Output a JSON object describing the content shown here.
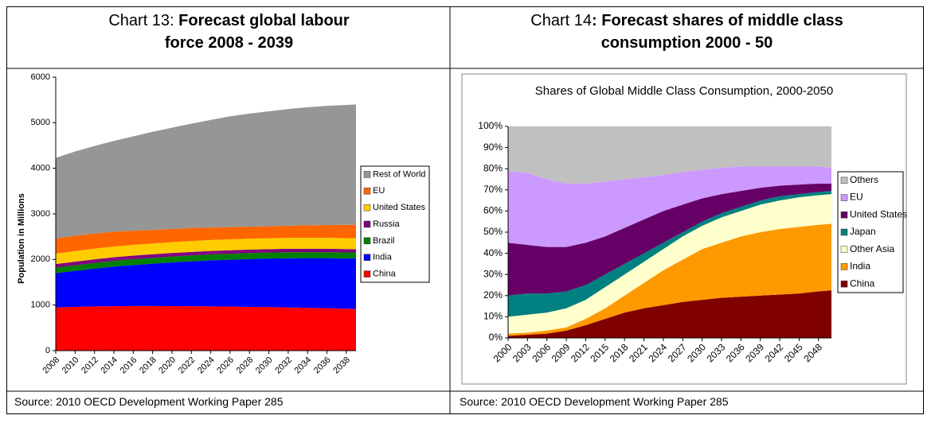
{
  "chart_data": [
    {
      "type": "area",
      "stacked": true,
      "caption_number": "Chart 13:",
      "caption": "Forecast global labour force 2008 - 2039",
      "y_label": "Population in Millions",
      "source": "Source: 2010 OECD Development Working Paper 285",
      "x": [
        2008,
        2010,
        2012,
        2014,
        2016,
        2018,
        2020,
        2022,
        2024,
        2026,
        2028,
        2030,
        2032,
        2034,
        2036,
        2038,
        2039
      ],
      "xlim": [
        2008,
        2039
      ],
      "xticks": [
        2008,
        2010,
        2012,
        2014,
        2016,
        2018,
        2020,
        2022,
        2024,
        2026,
        2028,
        2030,
        2032,
        2034,
        2036,
        2038
      ],
      "ylim": [
        0,
        6000
      ],
      "yticks": [
        0,
        1000,
        2000,
        3000,
        4000,
        5000,
        6000
      ],
      "series": [
        {
          "name": "China",
          "color": "#ff0000",
          "values": [
            950,
            960,
            970,
            975,
            978,
            978,
            976,
            974,
            970,
            965,
            960,
            955,
            948,
            940,
            930,
            920,
            915
          ]
        },
        {
          "name": "India",
          "color": "#0000ff",
          "values": [
            750,
            790,
            830,
            870,
            900,
            930,
            960,
            985,
            1010,
            1030,
            1050,
            1065,
            1080,
            1090,
            1100,
            1105,
            1108
          ]
        },
        {
          "name": "Brazil",
          "color": "#008000",
          "values": [
            120,
            122,
            124,
            126,
            127,
            128,
            129,
            130,
            130,
            131,
            131,
            131,
            131,
            131,
            130,
            130,
            130
          ]
        },
        {
          "name": "Russia",
          "color": "#800080",
          "values": [
            80,
            80,
            80,
            79,
            79,
            78,
            78,
            77,
            77,
            76,
            76,
            75,
            75,
            74,
            74,
            73,
            73
          ]
        },
        {
          "name": "United States",
          "color": "#ffcc00",
          "values": [
            230,
            232,
            234,
            235,
            236,
            237,
            238,
            239,
            240,
            240,
            240,
            240,
            240,
            240,
            240,
            240,
            240
          ]
        },
        {
          "name": "EU",
          "color": "#ff6600",
          "values": [
            330,
            336,
            332,
            325,
            310,
            299,
            289,
            285,
            273,
            268,
            263,
            264,
            266,
            275,
            281,
            292,
            294
          ]
        },
        {
          "name": "Rest of World",
          "color": "#969696",
          "values": [
            1770,
            1850,
            1920,
            1990,
            2070,
            2150,
            2220,
            2290,
            2360,
            2430,
            2480,
            2520,
            2560,
            2590,
            2615,
            2630,
            2640
          ]
        }
      ]
    },
    {
      "type": "area",
      "stacked": true,
      "caption_number": "Chart 14",
      "caption": ": Forecast shares of middle class consumption 2000 - 50",
      "title": "Shares of Global Middle Class Consumption, 2000-2050",
      "source": "Source: 2010 OECD Development Working Paper 285",
      "x": [
        2000,
        2003,
        2006,
        2009,
        2012,
        2015,
        2018,
        2021,
        2024,
        2027,
        2030,
        2033,
        2036,
        2039,
        2042,
        2045,
        2048,
        2050
      ],
      "xlim": [
        2000,
        2050
      ],
      "xticks": [
        2000,
        2003,
        2006,
        2009,
        2012,
        2015,
        2018,
        2021,
        2024,
        2027,
        2030,
        2033,
        2036,
        2039,
        2042,
        2045,
        2048
      ],
      "ylim": [
        0,
        100
      ],
      "yticks": [
        {
          "value": 0,
          "label": "0%"
        },
        {
          "value": 10,
          "label": "10%"
        },
        {
          "value": 20,
          "label": "20%"
        },
        {
          "value": 30,
          "label": "30%"
        },
        {
          "value": 40,
          "label": "40%"
        },
        {
          "value": 50,
          "label": "50%"
        },
        {
          "value": 60,
          "label": "60%"
        },
        {
          "value": 70,
          "label": "70%"
        },
        {
          "value": 80,
          "label": "80%"
        },
        {
          "value": 90,
          "label": "90%"
        },
        {
          "value": 100,
          "label": "100%"
        }
      ],
      "series": [
        {
          "name": "China",
          "color": "#800000",
          "values": [
            1,
            1.5,
            2,
            3.5,
            6,
            9,
            12,
            14,
            15.5,
            17,
            18,
            19,
            19.5,
            20,
            20.5,
            21,
            22,
            22.5
          ]
        },
        {
          "name": "India",
          "color": "#ff9900",
          "values": [
            1,
            1,
            1.5,
            1.5,
            3,
            5,
            8,
            12,
            16.5,
            20,
            24,
            26,
            28.5,
            30,
            31,
            31.5,
            31.5,
            31.5
          ]
        },
        {
          "name": "Other Asia",
          "color": "#ffffcc",
          "values": [
            8,
            8.5,
            8.5,
            9,
            9,
            10,
            10,
            10,
            10,
            11,
            11,
            12,
            12,
            13,
            13.5,
            14,
            14,
            14
          ]
        },
        {
          "name": "Japan",
          "color": "#008080",
          "values": [
            10,
            10,
            9,
            8,
            7,
            6,
            5,
            4,
            3,
            2,
            2,
            2,
            2,
            2,
            2,
            1.5,
            1.5,
            1.5
          ]
        },
        {
          "name": "United States",
          "color": "#660066",
          "values": [
            25,
            23,
            22,
            21,
            20,
            18,
            17,
            16,
            15,
            13,
            11,
            9,
            7.5,
            6,
            5,
            4.5,
            4,
            3.5
          ]
        },
        {
          "name": "EU",
          "color": "#cc99ff",
          "values": [
            34,
            34,
            32,
            30,
            28,
            26,
            23,
            20,
            17,
            15.5,
            13.5,
            12.5,
            11.5,
            10,
            9,
            8.5,
            8,
            7.5
          ]
        },
        {
          "name": "Others",
          "color": "#c0c0c0",
          "values": [
            21,
            22,
            25,
            27,
            27,
            26,
            25,
            24,
            23,
            21.5,
            20.5,
            19.5,
            19,
            19,
            19,
            19,
            19,
            19.5
          ]
        }
      ]
    }
  ]
}
